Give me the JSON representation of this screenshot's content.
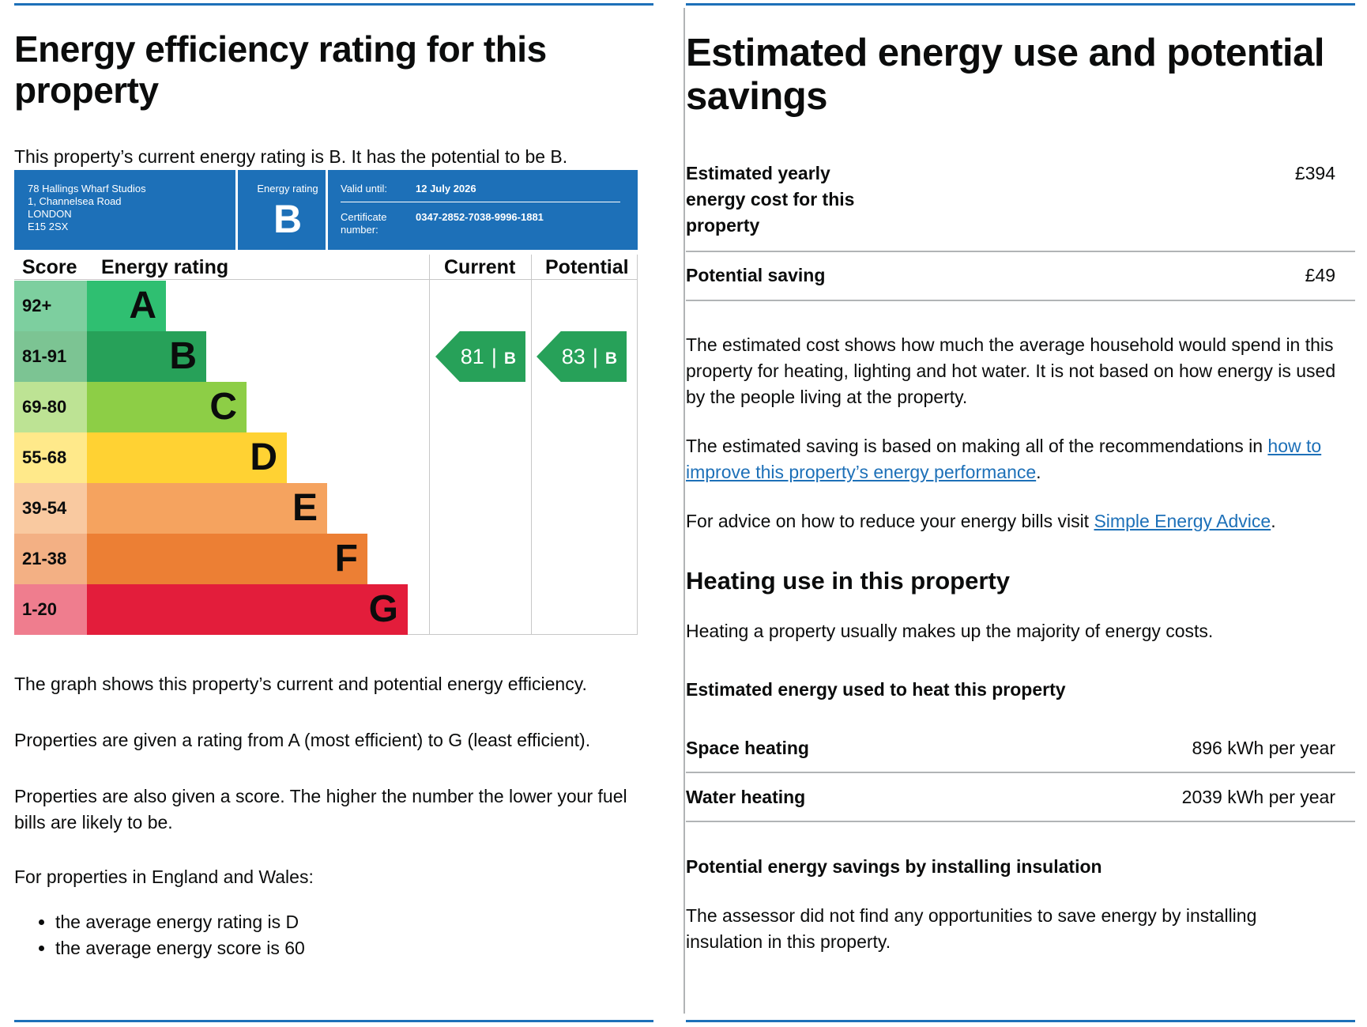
{
  "left": {
    "title": "Energy efficiency rating for this property",
    "intro": "This property’s current energy rating is B. It has the potential to be B.",
    "certificate": {
      "address_lines": [
        "78 Hallings Wharf Studios",
        "1, Channelsea Road",
        "LONDON",
        "E15 2SX"
      ],
      "energy_rating_label": "Energy rating",
      "energy_rating": "B",
      "valid_until_label": "Valid until:",
      "valid_until": "12 July 2026",
      "certificate_number_label": "Certificate number:",
      "certificate_number": "0347-2852-7038-9996-1881"
    },
    "chart_data": {
      "type": "table",
      "headers": {
        "score": "Score",
        "rating": "Energy rating",
        "current": "Current",
        "potential": "Potential"
      },
      "bands": [
        {
          "score": "92+",
          "letter": "A",
          "color": "#2fbf71",
          "score_bg": "#7dcf9f"
        },
        {
          "score": "81-91",
          "letter": "B",
          "color": "#27a159",
          "score_bg": "#7cc493"
        },
        {
          "score": "69-80",
          "letter": "C",
          "color": "#8dce46",
          "score_bg": "#bde394"
        },
        {
          "score": "55-68",
          "letter": "D",
          "color": "#ffd233",
          "score_bg": "#ffe98a"
        },
        {
          "score": "39-54",
          "letter": "E",
          "color": "#f5a35f",
          "score_bg": "#f9c9a0"
        },
        {
          "score": "21-38",
          "letter": "F",
          "color": "#ec7f34",
          "score_bg": "#f3b084"
        },
        {
          "score": "1-20",
          "letter": "G",
          "color": "#e31d3b",
          "score_bg": "#ef7d8e"
        }
      ],
      "current": {
        "score": 81,
        "score_text": "81",
        "letter": "B",
        "separator": "|"
      },
      "potential": {
        "score": 83,
        "score_text": "83",
        "letter": "B",
        "separator": "|"
      }
    },
    "para1": "The graph shows this property’s current and potential energy efficiency.",
    "para2": "Properties are given a rating from A (most efficient) to G (least efficient).",
    "para3": "Properties are also given a score. The higher the number the lower your fuel bills are likely to be.",
    "para4": "For properties in England and Wales:",
    "bullets": [
      "the average energy rating is D",
      "the average energy score is 60"
    ]
  },
  "right": {
    "title": "Estimated energy use and potential savings",
    "yearly_cost_label": "Estimated yearly energy cost for this property",
    "yearly_cost": "£394",
    "saving_label": "Potential saving",
    "saving": "£49",
    "para1": "The estimated cost shows how much the average household would spend in this property for heating, lighting and hot water. It is not based on how energy is used by the people living at the property.",
    "para2_before": "The estimated saving is based on making all of the recommendations in ",
    "para2_link": "how to improve this property’s energy performance",
    "para2_after": ".",
    "para3_before": "For advice on how to reduce your energy bills visit ",
    "para3_link": "Simple Energy Advice",
    "para3_after": ".",
    "heating_title": "Heating use in this property",
    "heating_intro": "Heating a property usually makes up the majority of energy costs.",
    "heat_subtitle": "Estimated energy used to heat this property",
    "space_heating_label": "Space heating",
    "space_heating": "896 kWh per year",
    "water_heating_label": "Water heating",
    "water_heating": "2039 kWh per year",
    "insulation_title": "Potential energy savings by installing insulation",
    "insulation_text": "The assessor did not find any opportunities to save energy by installing insulation in this property."
  }
}
